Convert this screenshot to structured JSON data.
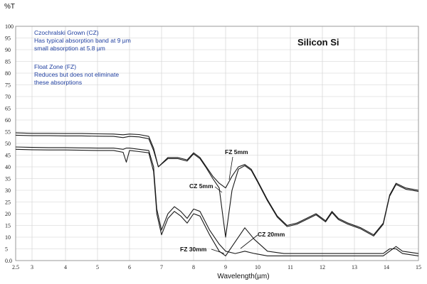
{
  "chart_data": {
    "type": "line",
    "title": "Silicon  Si",
    "xlabel": "Wavelength(µm)",
    "ylabel": "%T",
    "xlim": [
      2.5,
      15
    ],
    "ylim": [
      0,
      100
    ],
    "grid": true,
    "x_tick_labels": [
      "2.5",
      "3",
      "4",
      "5",
      "6",
      "7",
      "8",
      "9",
      "10",
      "11",
      "12",
      "13",
      "14",
      "15"
    ],
    "x_tick_values": [
      2.5,
      3,
      4,
      5,
      6,
      7,
      8,
      9,
      10,
      11,
      12,
      13,
      14,
      15
    ],
    "y_tick_labels": [
      "0.0",
      "5",
      "10",
      "15",
      "20",
      "25",
      "30",
      "35",
      "40",
      "45",
      "50",
      "55",
      "60",
      "65",
      "70",
      "75",
      "80",
      "85",
      "90",
      "95",
      "100"
    ],
    "y_tick_values": [
      0,
      5,
      10,
      15,
      20,
      25,
      30,
      35,
      40,
      45,
      50,
      55,
      60,
      65,
      70,
      75,
      80,
      85,
      90,
      95,
      100
    ],
    "annotations": {
      "cz_title": "Czochralski Grown (CZ)",
      "cz_line1": "Has typical absorption band at 9 µm",
      "cz_line2": "small absorption at 5.8 µm",
      "fz_title": "Float Zone (FZ)",
      "fz_line1": "Reduces but does not eliminate",
      "fz_line2": "these absorptions"
    },
    "curve_labels": {
      "fz5": "FZ 5mm",
      "cz5": "CZ 5mm",
      "cz20": "CZ 20mm",
      "fz30": "FZ 30mm"
    },
    "series": [
      {
        "name": "FZ 5mm",
        "x": [
          2.5,
          3,
          3.5,
          4,
          4.5,
          5,
          5.5,
          5.8,
          6,
          6.3,
          6.6,
          6.75,
          6.9,
          7.2,
          7.5,
          7.8,
          8,
          8.2,
          8.4,
          8.6,
          8.8,
          9,
          9.2,
          9.4,
          9.6,
          9.8,
          10,
          10.3,
          10.6,
          10.9,
          11.2,
          11.5,
          11.8,
          12.1,
          12.3,
          12.5,
          12.8,
          13.2,
          13.6,
          13.9,
          14.1,
          14.3,
          14.6,
          15
        ],
        "y": [
          54.5,
          54.3,
          54.3,
          54.2,
          54.2,
          54.1,
          54,
          53.7,
          54,
          53.8,
          53,
          48,
          40,
          44,
          44,
          43,
          46,
          44,
          40,
          36,
          33,
          31,
          36,
          40,
          41,
          39,
          34,
          26,
          19,
          15,
          16,
          18,
          20,
          17,
          21,
          18,
          16,
          14,
          11,
          16,
          28,
          33,
          31,
          30
        ]
      },
      {
        "name": "CZ 5mm",
        "x": [
          2.5,
          3,
          3.5,
          4,
          4.5,
          5,
          5.5,
          5.8,
          6,
          6.3,
          6.6,
          6.75,
          6.9,
          7.2,
          7.5,
          7.8,
          8,
          8.2,
          8.4,
          8.6,
          8.8,
          9,
          9.2,
          9.4,
          9.6,
          9.8,
          10,
          10.3,
          10.6,
          10.9,
          11.2,
          11.5,
          11.8,
          12.1,
          12.3,
          12.5,
          12.8,
          13.2,
          13.6,
          13.9,
          14.1,
          14.3,
          14.6,
          15
        ],
        "y": [
          53.5,
          53.3,
          53.3,
          53.2,
          53.2,
          53.1,
          53,
          52.5,
          53,
          52.8,
          52,
          47,
          40,
          43.5,
          43.5,
          42.5,
          45.5,
          43.5,
          39.5,
          35,
          31,
          10,
          30,
          39,
          40.5,
          38.5,
          33.5,
          25.5,
          18.5,
          14.5,
          15.5,
          17.5,
          19.5,
          16.5,
          20.5,
          17.5,
          15.5,
          13.5,
          10.5,
          15.5,
          27.5,
          32.5,
          30.5,
          29.5
        ]
      },
      {
        "name": "FZ 30mm",
        "x": [
          2.5,
          3,
          3.5,
          4,
          4.5,
          5,
          5.5,
          5.8,
          5.9,
          6,
          6.3,
          6.6,
          6.75,
          6.85,
          7,
          7.2,
          7.4,
          7.6,
          7.8,
          8,
          8.2,
          8.5,
          8.8,
          9,
          9.3,
          9.6,
          9.9,
          10.3,
          10.8,
          11.5,
          12,
          12.5,
          13,
          13.5,
          13.9,
          14.1,
          14.3,
          14.5,
          15
        ],
        "y": [
          48.5,
          48.3,
          48.2,
          48.2,
          48.1,
          48,
          48,
          47.5,
          48,
          48,
          47.5,
          47,
          40,
          22,
          13,
          20,
          23,
          21,
          18,
          22,
          21,
          13,
          7,
          4,
          3,
          4,
          3,
          2,
          2,
          2,
          2,
          2,
          2,
          2,
          2,
          4,
          6,
          4,
          3
        ]
      },
      {
        "name": "CZ 20mm",
        "x": [
          2.5,
          3,
          3.5,
          4,
          4.5,
          5,
          5.5,
          5.8,
          5.9,
          6,
          6.3,
          6.6,
          6.75,
          6.85,
          7,
          7.2,
          7.4,
          7.6,
          7.8,
          8,
          8.2,
          8.5,
          8.8,
          9,
          9.3,
          9.6,
          9.9,
          10.3,
          10.8,
          11.5,
          12,
          12.5,
          13,
          13.5,
          13.9,
          14.1,
          14.3,
          14.5,
          15
        ],
        "y": [
          47.5,
          47.3,
          47.2,
          47.2,
          47.1,
          47,
          47,
          46.2,
          42,
          47,
          46.5,
          46,
          38,
          20,
          11,
          18,
          21,
          19,
          16,
          20,
          19,
          11,
          4,
          2,
          8,
          14,
          9,
          4,
          3,
          3,
          3,
          3,
          3,
          3,
          3,
          5,
          5,
          3,
          2
        ]
      }
    ]
  }
}
